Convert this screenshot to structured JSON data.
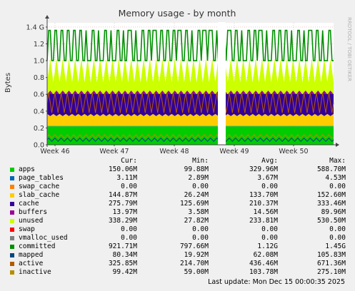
{
  "chart_data": {
    "type": "area",
    "title": "Memory usage - by month",
    "ylabel": "Bytes",
    "watermark": "RRDTOOL / TOBI OETIKER",
    "ylim": [
      0,
      1.45
    ],
    "yticks": [
      "0.0",
      "0.2",
      "0.4",
      "0.6",
      "0.8",
      "1.0",
      "1.2",
      "1.4 G"
    ],
    "xticks": [
      "Week 46",
      "Week 47",
      "Week 48",
      "Week 49",
      "Week 50"
    ],
    "gap_after_week": 49,
    "series": [
      {
        "name": "apps",
        "color": "#00cc00",
        "kind": "stack",
        "level": 0.22,
        "amp": 0.04
      },
      {
        "name": "page_tables",
        "color": "#0066b3",
        "kind": "stack",
        "level": 0.004,
        "amp": 0.0
      },
      {
        "name": "swap_cache",
        "color": "#ff8000",
        "kind": "stack",
        "level": 0.0,
        "amp": 0.0
      },
      {
        "name": "slab_cache",
        "color": "#ffcc00",
        "kind": "stack",
        "level": 0.13,
        "amp": 0.02
      },
      {
        "name": "cache",
        "color": "#330099",
        "kind": "stack",
        "level": 0.25,
        "amp": 0.12
      },
      {
        "name": "buffers",
        "color": "#990099",
        "kind": "stack",
        "level": 0.015,
        "amp": 0.03
      },
      {
        "name": "unused",
        "color": "#ccff00",
        "kind": "stack",
        "level": 0.26,
        "amp": 0.12
      },
      {
        "name": "swap",
        "color": "#ff0000",
        "kind": "stack",
        "level": 0.0,
        "amp": 0.0
      },
      {
        "name": "vmalloc_used",
        "color": "#808080",
        "kind": "line",
        "level": 0.0,
        "amp": 0.0
      },
      {
        "name": "committed",
        "color": "#008f00",
        "kind": "line",
        "level": 1.18,
        "amp": 0.18
      },
      {
        "name": "mapped",
        "color": "#00487d",
        "kind": "line",
        "level": 0.06,
        "amp": 0.02
      },
      {
        "name": "active",
        "color": "#b35a00",
        "kind": "line",
        "level": 0.5,
        "amp": 0.12
      },
      {
        "name": "inactive",
        "color": "#b38f00",
        "kind": "line",
        "level": 0.1,
        "amp": 0.02
      }
    ]
  },
  "legend": {
    "headers": {
      "cur": "Cur:",
      "min": "Min:",
      "avg": "Avg:",
      "max": "Max:"
    },
    "rows": [
      {
        "name": "apps",
        "color": "#00cc00",
        "cur": "150.06M",
        "min": "99.88M",
        "avg": "329.96M",
        "max": "588.70M"
      },
      {
        "name": "page_tables",
        "color": "#0066b3",
        "cur": "3.11M",
        "min": "2.89M",
        "avg": "3.67M",
        "max": "4.53M"
      },
      {
        "name": "swap_cache",
        "color": "#ff8000",
        "cur": "0.00",
        "min": "0.00",
        "avg": "0.00",
        "max": "0.00"
      },
      {
        "name": "slab_cache",
        "color": "#ffcc00",
        "cur": "144.87M",
        "min": "26.24M",
        "avg": "133.70M",
        "max": "152.60M"
      },
      {
        "name": "cache",
        "color": "#330099",
        "cur": "275.79M",
        "min": "125.69M",
        "avg": "210.37M",
        "max": "333.46M"
      },
      {
        "name": "buffers",
        "color": "#990099",
        "cur": "13.97M",
        "min": "3.58M",
        "avg": "14.56M",
        "max": "89.96M"
      },
      {
        "name": "unused",
        "color": "#ccff00",
        "cur": "338.29M",
        "min": "27.82M",
        "avg": "233.81M",
        "max": "530.50M"
      },
      {
        "name": "swap",
        "color": "#ff0000",
        "cur": "0.00",
        "min": "0.00",
        "avg": "0.00",
        "max": "0.00"
      },
      {
        "name": "vmalloc_used",
        "color": "#808080",
        "cur": "0.00",
        "min": "0.00",
        "avg": "0.00",
        "max": "0.00"
      },
      {
        "name": "committed",
        "color": "#008f00",
        "cur": "921.71M",
        "min": "797.66M",
        "avg": "1.12G",
        "max": "1.45G"
      },
      {
        "name": "mapped",
        "color": "#00487d",
        "cur": "80.34M",
        "min": "19.92M",
        "avg": "62.08M",
        "max": "105.83M"
      },
      {
        "name": "active",
        "color": "#b35a00",
        "cur": "325.85M",
        "min": "214.70M",
        "avg": "436.46M",
        "max": "671.36M"
      },
      {
        "name": "inactive",
        "color": "#b38f00",
        "cur": "99.42M",
        "min": "59.00M",
        "avg": "103.78M",
        "max": "275.10M"
      }
    ]
  },
  "footer": {
    "last_update": "Last update: Mon Dec 15 00:00:35 2025"
  }
}
